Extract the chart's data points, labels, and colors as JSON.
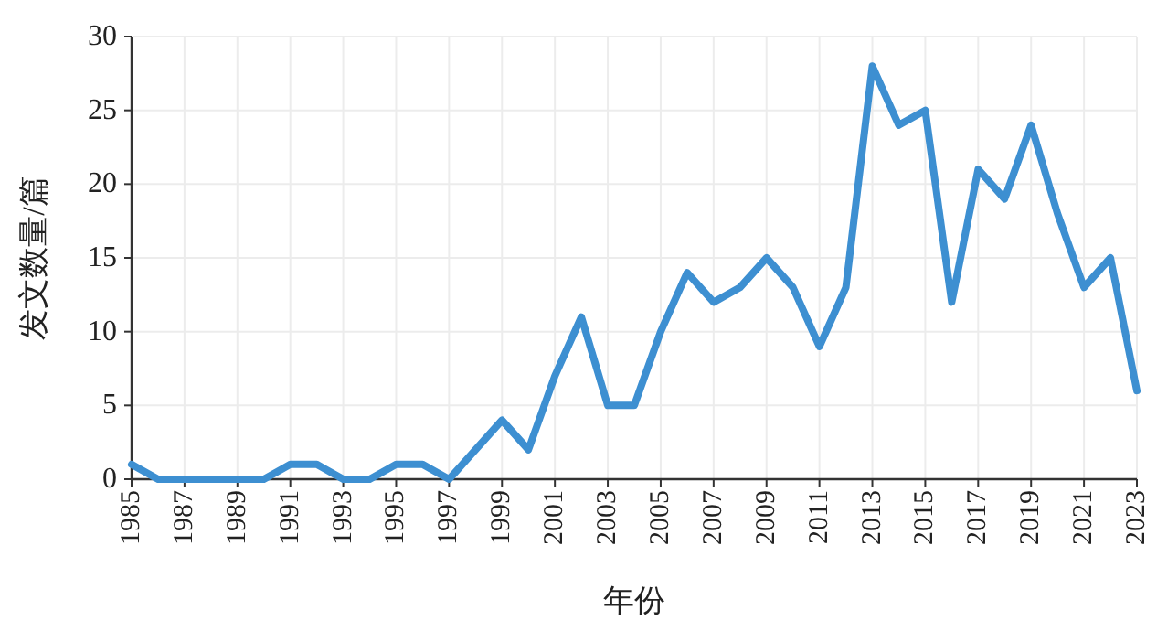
{
  "chart_data": {
    "type": "line",
    "xlabel": "年份",
    "ylabel": "发文数量/篇",
    "x": [
      1985,
      1986,
      1987,
      1988,
      1989,
      1990,
      1991,
      1992,
      1993,
      1994,
      1995,
      1996,
      1997,
      1998,
      1999,
      2000,
      2001,
      2002,
      2003,
      2004,
      2005,
      2006,
      2007,
      2008,
      2009,
      2010,
      2011,
      2012,
      2013,
      2014,
      2015,
      2016,
      2017,
      2018,
      2019,
      2020,
      2021,
      2022,
      2023
    ],
    "series": [
      {
        "color": "#3d8fd1",
        "values": [
          1,
          0,
          0,
          0,
          0,
          0,
          1,
          1,
          0,
          0,
          1,
          1,
          0,
          2,
          4,
          2,
          7,
          11,
          5,
          5,
          10,
          14,
          12,
          13,
          15,
          13,
          9,
          13,
          28,
          24,
          25,
          12,
          21,
          19,
          24,
          18,
          13,
          15,
          6
        ]
      }
    ],
    "xlim": [
      1985,
      2023
    ],
    "xticks": [
      1985,
      1987,
      1989,
      1991,
      1993,
      1995,
      1997,
      1999,
      2001,
      2003,
      2005,
      2007,
      2009,
      2011,
      2013,
      2015,
      2017,
      2019,
      2021,
      2023
    ],
    "ylim": [
      0,
      30
    ],
    "yticks": [
      0,
      5,
      10,
      15,
      20,
      25,
      30
    ],
    "grid": true,
    "marker": "none",
    "line_style": "solid"
  }
}
